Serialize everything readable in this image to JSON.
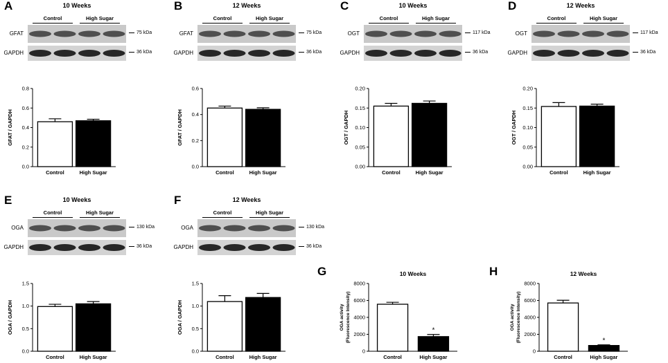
{
  "colors": {
    "control": "#ffffff",
    "high_sugar": "#000000",
    "axis": "#000000"
  },
  "blots": [
    {
      "letter": "A",
      "title": "10 Weeks",
      "groups": [
        "Control",
        "High Sugar"
      ],
      "rows": [
        {
          "label": "GFAT",
          "kda": "75 kDa"
        },
        {
          "label": "GAPDH",
          "kda": "36 kDa"
        }
      ]
    },
    {
      "letter": "B",
      "title": "12 Weeks",
      "groups": [
        "Control",
        "High Sugar"
      ],
      "rows": [
        {
          "label": "GFAT",
          "kda": "75 kDa"
        },
        {
          "label": "GAPDH",
          "kda": "36 kDa"
        }
      ]
    },
    {
      "letter": "C",
      "title": "10 Weeks",
      "groups": [
        "Control",
        "High Sugar"
      ],
      "rows": [
        {
          "label": "OGT",
          "kda": "117 kDa"
        },
        {
          "label": "GAPDH",
          "kda": "36 kDa"
        }
      ]
    },
    {
      "letter": "D",
      "title": "12 Weeks",
      "groups": [
        "Control",
        "High Sugar"
      ],
      "rows": [
        {
          "label": "OGT",
          "kda": "117 kDa"
        },
        {
          "label": "GAPDH",
          "kda": "36 kDa"
        }
      ]
    },
    {
      "letter": "E",
      "title": "10 Weeks",
      "groups": [
        "Control",
        "High Sugar"
      ],
      "rows": [
        {
          "label": "OGA",
          "kda": "130 kDa"
        },
        {
          "label": "GAPDH",
          "kda": "36 kDa"
        }
      ]
    },
    {
      "letter": "F",
      "title": "12 Weeks",
      "groups": [
        "Control",
        "High Sugar"
      ],
      "rows": [
        {
          "label": "OGA",
          "kda": "130 kDa"
        },
        {
          "label": "GAPDH",
          "kda": "36 kDa"
        }
      ]
    }
  ],
  "chart_data": [
    {
      "panel": "A",
      "type": "bar",
      "categories": [
        "Control",
        "High Sugar"
      ],
      "values": [
        0.46,
        0.47
      ],
      "errors": [
        0.03,
        0.015
      ],
      "ylabel": "GFAT / GAPDH",
      "ylim": [
        0,
        0.8
      ],
      "yticks": [
        "0.0",
        "0.2",
        "0.4",
        "0.6",
        "0.8"
      ],
      "significance": [
        "",
        ""
      ]
    },
    {
      "panel": "B",
      "type": "bar",
      "categories": [
        "Control",
        "High Sugar"
      ],
      "values": [
        0.45,
        0.44
      ],
      "errors": [
        0.015,
        0.012
      ],
      "ylabel": "GFAT / GAPDH",
      "ylim": [
        0,
        0.6
      ],
      "yticks": [
        "0.0",
        "0.2",
        "0.4",
        "0.6"
      ],
      "significance": [
        "",
        ""
      ]
    },
    {
      "panel": "C",
      "type": "bar",
      "categories": [
        "Control",
        "High Sugar"
      ],
      "values": [
        0.155,
        0.162
      ],
      "errors": [
        0.007,
        0.006
      ],
      "ylabel": "OGT / GAPDH",
      "ylim": [
        0,
        0.2
      ],
      "yticks": [
        "0.00",
        "0.05",
        "0.10",
        "0.15",
        "0.20"
      ],
      "significance": [
        "",
        ""
      ]
    },
    {
      "panel": "D",
      "type": "bar",
      "categories": [
        "Control",
        "High Sugar"
      ],
      "values": [
        0.154,
        0.155
      ],
      "errors": [
        0.01,
        0.005
      ],
      "ylabel": "OGT / GAPDH",
      "ylim": [
        0,
        0.2
      ],
      "yticks": [
        "0.00",
        "0.05",
        "0.10",
        "0.15",
        "0.20"
      ],
      "significance": [
        "",
        ""
      ]
    },
    {
      "panel": "E",
      "type": "bar",
      "categories": [
        "Control",
        "High Sugar"
      ],
      "values": [
        0.99,
        1.05
      ],
      "errors": [
        0.05,
        0.05
      ],
      "ylabel": "OGA / GAPDH",
      "ylim": [
        0,
        1.5
      ],
      "yticks": [
        "0.0",
        "0.5",
        "1.0",
        "1.5"
      ],
      "significance": [
        "",
        ""
      ]
    },
    {
      "panel": "F",
      "type": "bar",
      "categories": [
        "Control",
        "High Sugar"
      ],
      "values": [
        1.1,
        1.19
      ],
      "errors": [
        0.13,
        0.09
      ],
      "ylabel": "OGA / GAPDH",
      "ylim": [
        0,
        1.5
      ],
      "yticks": [
        "0.0",
        "0.5",
        "1.0",
        "1.5"
      ],
      "significance": [
        "",
        ""
      ]
    },
    {
      "panel": "G",
      "title": "10 Weeks",
      "type": "bar",
      "categories": [
        "Control",
        "High Sugar"
      ],
      "values": [
        5550,
        1730
      ],
      "errors": [
        230,
        250
      ],
      "ylabel": "OGA activity (Fluorescence Intensity)",
      "ylabel_lines": [
        "OGA activity",
        "(Fluorescence Intensity)"
      ],
      "ylim": [
        0,
        8000
      ],
      "yticks": [
        "0",
        "2000",
        "4000",
        "6000",
        "8000"
      ],
      "significance": [
        "",
        "*"
      ]
    },
    {
      "panel": "H",
      "title": "12 Weeks",
      "type": "bar",
      "categories": [
        "Control",
        "High Sugar"
      ],
      "values": [
        5700,
        680
      ],
      "errors": [
        320,
        80
      ],
      "ylabel": "OGA activity (Fluorescence Intensity)",
      "ylabel_lines": [
        "OGA activity",
        "(Fluorescence Intensity)"
      ],
      "ylim": [
        0,
        8000
      ],
      "yticks": [
        "0",
        "2000",
        "4000",
        "6000",
        "8000"
      ],
      "significance": [
        "",
        "*"
      ]
    }
  ]
}
